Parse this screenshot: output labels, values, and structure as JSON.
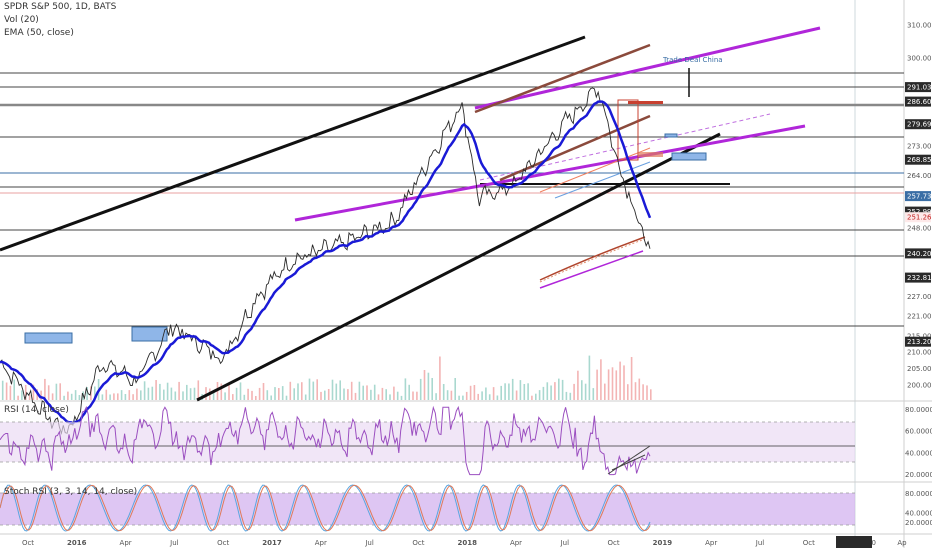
{
  "header": {
    "symbol_line": "SPDR S&P 500, 1D, BATS",
    "vol_line": "Vol (20)",
    "ema_line": "EMA (50, close)"
  },
  "rsi_label": "RSI (14, close)",
  "stoch_label": "Stoch RSI (3, 3, 14, 14, close)",
  "annotation": "Trade Deal China",
  "colors": {
    "price": "#2a2a2a",
    "ema": "#1a1ad6",
    "purple": "#b026d9",
    "brown": "#8b4a3c",
    "rsi": "#9b4fc0",
    "stoch_k": "#5aa6e0",
    "stoch_d": "#e07a5a",
    "volume_up": "#a9d8cf",
    "volume_down": "#f3b4b4",
    "price_label_bg": "#2a2a2a",
    "highlight_label_bg": "#3a6ea5"
  },
  "chart_data": [
    {
      "type": "line",
      "panel": "price",
      "title": "SPDR S&P 500, 1D, BATS",
      "series": [
        {
          "name": "Vol (20)"
        },
        {
          "name": "EMA (50, close)"
        }
      ],
      "x_ticks": [
        "Oct",
        "2016",
        "Apr",
        "Jul",
        "Oct",
        "2017",
        "Apr",
        "Jul",
        "Oct",
        "2018",
        "Apr",
        "Jul",
        "Oct",
        "2019",
        "Apr",
        "Jul",
        "Oct",
        "01 Jan '20",
        "Ap"
      ],
      "y_ticks": [
        "310.00",
        "300.00",
        "291.03",
        "286.60",
        "279.69",
        "273.00",
        "268.85",
        "264.00",
        "257.73",
        "252.99",
        "251.26",
        "248.00",
        "240.20",
        "232.81",
        "227.00",
        "221.00",
        "215.00",
        "213.20",
        "210.00",
        "205.00",
        "200.00"
      ],
      "highlighted_prices": [
        291.03,
        286.6,
        279.69,
        268.85,
        257.73,
        252.99,
        251.26,
        240.2,
        232.81,
        213.2
      ],
      "ylim": [
        196,
        314
      ],
      "close_approx": [
        {
          "x": "2015-10",
          "y": 207
        },
        {
          "x": "2016-01",
          "y": 189
        },
        {
          "x": "2016-02",
          "y": 186
        },
        {
          "x": "2016-04",
          "y": 207
        },
        {
          "x": "2016-06",
          "y": 201
        },
        {
          "x": "2016-08",
          "y": 218
        },
        {
          "x": "2016-11",
          "y": 208
        },
        {
          "x": "2017-01",
          "y": 227
        },
        {
          "x": "2017-03",
          "y": 238
        },
        {
          "x": "2017-06",
          "y": 243
        },
        {
          "x": "2017-09",
          "y": 250
        },
        {
          "x": "2018-01",
          "y": 286
        },
        {
          "x": "2018-02",
          "y": 257
        },
        {
          "x": "2018-04",
          "y": 261
        },
        {
          "x": "2018-07",
          "y": 280
        },
        {
          "x": "2018-09",
          "y": 291
        },
        {
          "x": "2018-10",
          "y": 270
        },
        {
          "x": "2018-12",
          "y": 240
        }
      ]
    },
    {
      "type": "line",
      "panel": "rsi",
      "title": "RSI (14, close)",
      "y_ticks": [
        "80.0000",
        "60.0000",
        "40.0000",
        "20.0000"
      ],
      "ylim": [
        15,
        85
      ],
      "levels": [
        70,
        50,
        30
      ]
    },
    {
      "type": "line",
      "panel": "stoch_rsi",
      "title": "Stoch RSI (3, 3, 14, 14, close)",
      "y_ticks": [
        "80.0000",
        "40.0000",
        "20.0000"
      ],
      "ylim": [
        0,
        100
      ],
      "levels": [
        80,
        20
      ]
    }
  ]
}
